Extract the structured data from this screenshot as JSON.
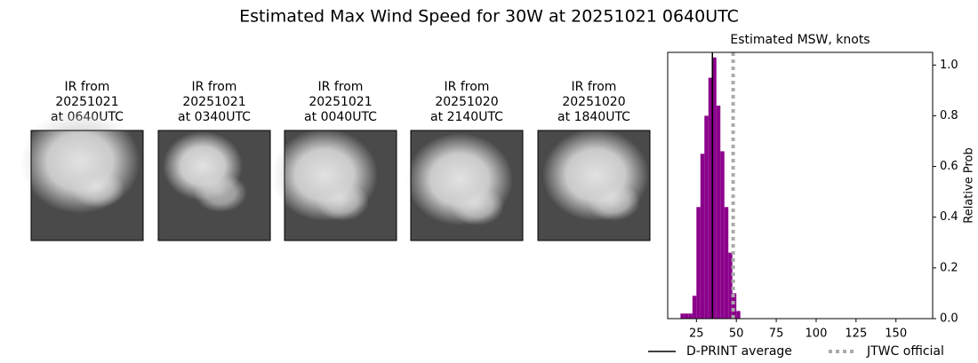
{
  "title": "Estimated Max Wind Speed for 30W at 20251021 0640UTC",
  "panels": [
    {
      "title": [
        "IR from",
        "20251021",
        "at 0640UTC"
      ]
    },
    {
      "title": [
        "IR from",
        "20251021",
        "at 0340UTC"
      ]
    },
    {
      "title": [
        "IR from",
        "20251021",
        "at 0040UTC"
      ]
    },
    {
      "title": [
        "IR from",
        "20251020",
        "at 2140UTC"
      ]
    },
    {
      "title": [
        "IR from",
        "20251020",
        "at 1840UTC"
      ]
    }
  ],
  "chart_data": {
    "type": "histogram",
    "title": "Estimated MSW, knots",
    "ylabel": "Relative Prob",
    "bins": [
      15,
      17.5,
      20,
      22.5,
      25,
      27.5,
      30,
      32.5,
      35,
      37.5,
      40,
      42.5,
      45,
      47.5,
      50,
      52.5
    ],
    "values": [
      0.02,
      0.02,
      0.02,
      0.09,
      0.44,
      0.65,
      0.8,
      0.95,
      1.03,
      0.84,
      0.66,
      0.44,
      0.26,
      0.1,
      0.03
    ],
    "color": "#8b008b",
    "xlim": [
      7,
      173
    ],
    "ylim": [
      0,
      1.05
    ],
    "xticks": [
      25,
      50,
      75,
      100,
      125,
      150
    ],
    "yticks": [
      {
        "value": 0,
        "label": "0.0"
      },
      0.2,
      0.4,
      0.6,
      0.8,
      {
        "value": 1,
        "label": "1.0"
      }
    ],
    "yaxis_side": "right",
    "lines": [
      {
        "name": "D-PRINT average",
        "value": 35,
        "color": "#000000",
        "style": "solid"
      },
      {
        "name": "JTWC official",
        "value": 48,
        "color": "#aaaaaa",
        "style": "dotted"
      }
    ]
  }
}
